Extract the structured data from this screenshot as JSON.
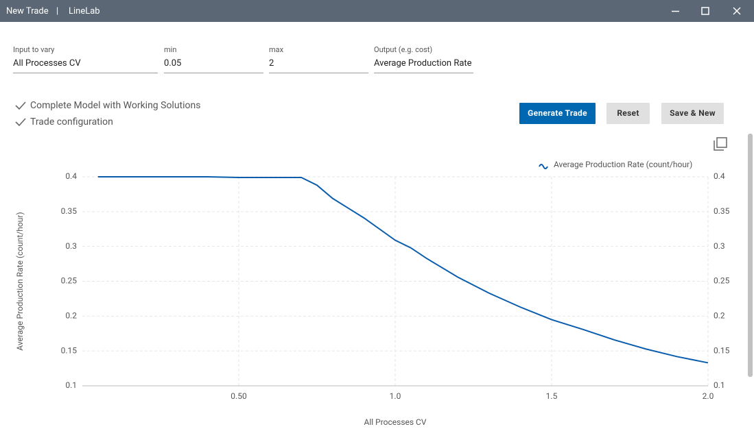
{
  "window": {
    "title": "New Trade",
    "separator": "|",
    "app": "LineLab"
  },
  "form": {
    "fields": [
      {
        "label": "Input to vary",
        "value": "All Processes CV"
      },
      {
        "label": "min",
        "value": "0.05"
      },
      {
        "label": "max",
        "value": "2"
      },
      {
        "label": "Output (e.g. cost)",
        "value": "Average Production Rate"
      }
    ]
  },
  "checklist": [
    "Complete Model with Working Solutions",
    "Trade configuration"
  ],
  "buttons": [
    "Generate Trade",
    "Reset",
    "Save & New"
  ],
  "chart_data": {
    "type": "line",
    "x_label": "All Processes CV",
    "y_label": "Average Production Rate (count/hour)",
    "x": [
      0.05,
      0.1,
      0.2,
      0.3,
      0.4,
      0.5,
      0.6,
      0.7,
      0.75,
      0.8,
      0.9,
      1.0,
      1.05,
      1.1,
      1.2,
      1.3,
      1.4,
      1.5,
      1.6,
      1.7,
      1.8,
      1.9,
      2.0
    ],
    "series": [
      {
        "name": "Average Production Rate (count/hour)",
        "color": "#0a5cad",
        "values": [
          0.4,
          0.4,
          0.4,
          0.4,
          0.4,
          0.399,
          0.399,
          0.399,
          0.388,
          0.369,
          0.341,
          0.309,
          0.298,
          0.283,
          0.256,
          0.233,
          0.213,
          0.195,
          0.181,
          0.166,
          0.153,
          0.142,
          0.133
        ]
      }
    ],
    "xlim": [
      0,
      2
    ],
    "xticks": [
      {
        "value": 0.5,
        "label": "0.50"
      },
      {
        "value": 1,
        "label": "1.0"
      },
      {
        "value": 1.5,
        "label": "1.5"
      },
      {
        "value": 2,
        "label": "2.0"
      }
    ],
    "ylim": [
      0.1,
      0.4
    ],
    "yticks": [
      0.1,
      0.15,
      0.2,
      0.25,
      0.3,
      0.35,
      0.4
    ],
    "grid": true,
    "legend": "top-right"
  }
}
